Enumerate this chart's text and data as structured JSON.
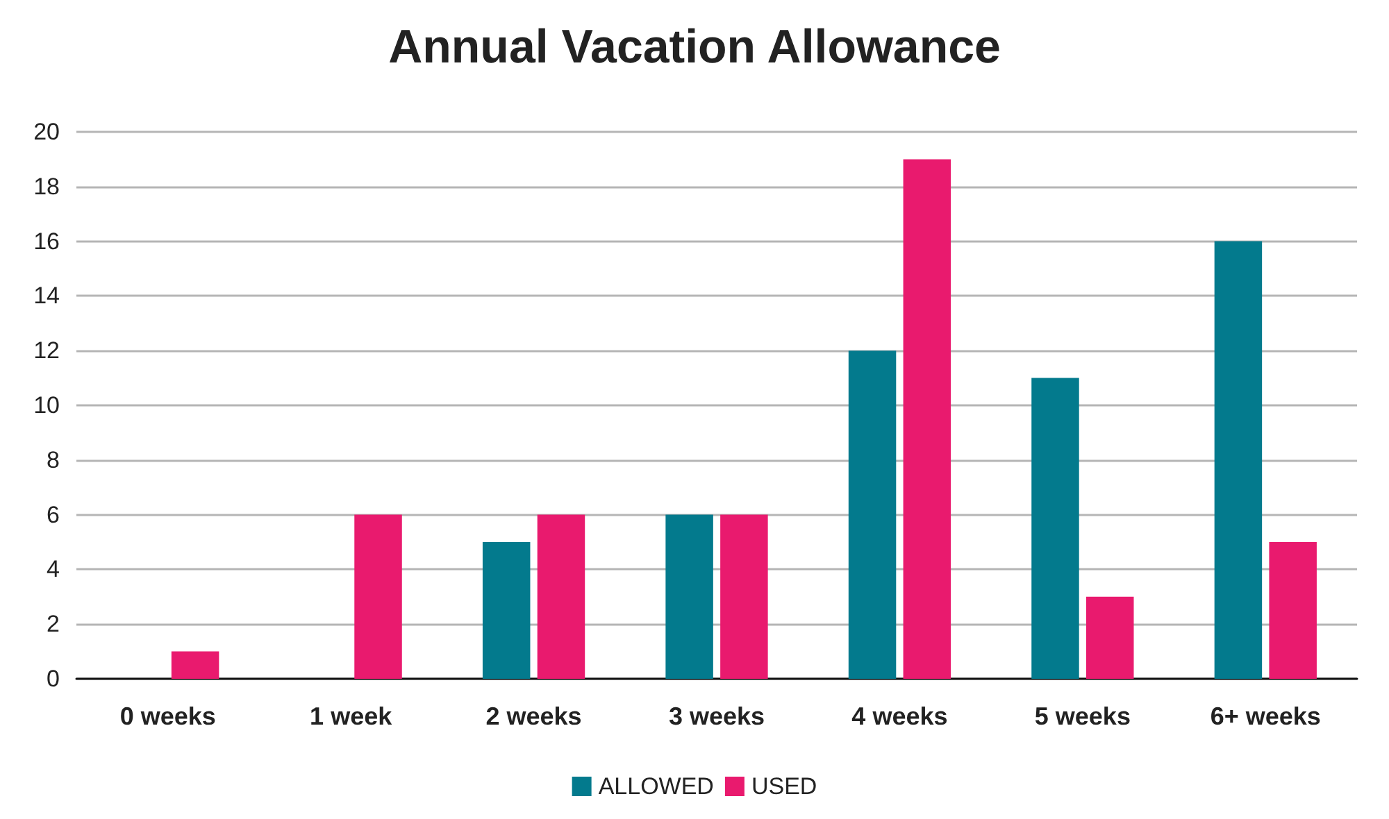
{
  "chart_data": {
    "type": "bar",
    "title": "Annual Vacation Allowance",
    "categories": [
      "0 weeks",
      "1 week",
      "2 weeks",
      "3 weeks",
      "4 weeks",
      "5 weeks",
      "6+ weeks"
    ],
    "series": [
      {
        "name": "ALLOWED",
        "color": "#037a8d",
        "values": [
          0,
          0,
          5,
          6,
          12,
          11,
          16
        ]
      },
      {
        "name": "USED",
        "color": "#e91a6e",
        "values": [
          1,
          6,
          6,
          6,
          19,
          3,
          5
        ]
      }
    ],
    "ylim": [
      0,
      20
    ],
    "yticks": [
      0,
      2,
      4,
      6,
      8,
      10,
      12,
      14,
      16,
      18,
      20
    ],
    "grid": "y",
    "legend": "bottom"
  }
}
